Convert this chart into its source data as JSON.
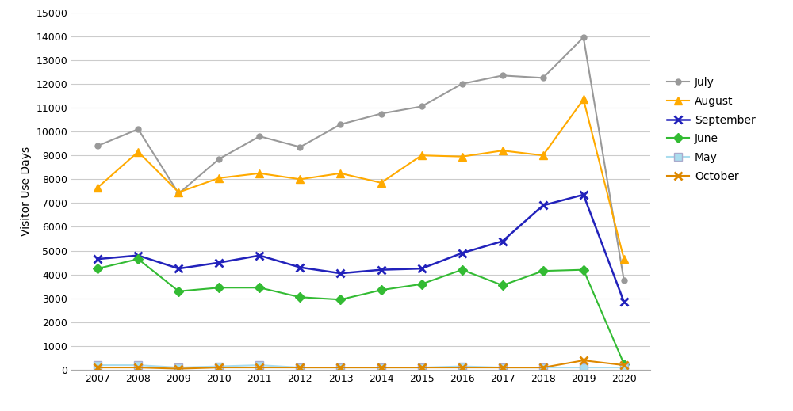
{
  "years": [
    2007,
    2008,
    2009,
    2010,
    2011,
    2012,
    2013,
    2014,
    2015,
    2016,
    2017,
    2018,
    2019,
    2020
  ],
  "july": [
    9400,
    10100,
    7400,
    8850,
    9800,
    9350,
    10300,
    10750,
    11050,
    12000,
    12350,
    12250,
    13950,
    3750
  ],
  "august": [
    7650,
    9150,
    7450,
    8050,
    8250,
    8000,
    8250,
    7850,
    9000,
    8950,
    9200,
    9000,
    11350,
    4650
  ],
  "september": [
    4650,
    4800,
    4250,
    4500,
    4800,
    4300,
    4050,
    4200,
    4250,
    4900,
    5400,
    6900,
    7350,
    2850
  ],
  "june": [
    4250,
    4650,
    3300,
    3450,
    3450,
    3050,
    2950,
    3350,
    3600,
    4200,
    3550,
    4150,
    4200,
    250
  ],
  "may": [
    200,
    200,
    100,
    150,
    200,
    100,
    100,
    100,
    100,
    150,
    100,
    100,
    100,
    100
  ],
  "october": [
    100,
    100,
    50,
    100,
    100,
    100,
    100,
    100,
    100,
    100,
    100,
    100,
    400,
    200
  ],
  "july_color": "#999999",
  "august_color": "#ffaa00",
  "september_color": "#2222bb",
  "june_color": "#33bb33",
  "may_color": "#aaddee",
  "october_color": "#dd8800",
  "ylabel": "Visitor Use Days",
  "ylim": [
    0,
    15000
  ],
  "yticks": [
    0,
    1000,
    2000,
    3000,
    4000,
    5000,
    6000,
    7000,
    8000,
    9000,
    10000,
    11000,
    12000,
    13000,
    14000,
    15000
  ],
  "background_color": "#ffffff",
  "grid_color": "#cccccc",
  "figwidth": 10.0,
  "figheight": 5.19,
  "dpi": 100
}
